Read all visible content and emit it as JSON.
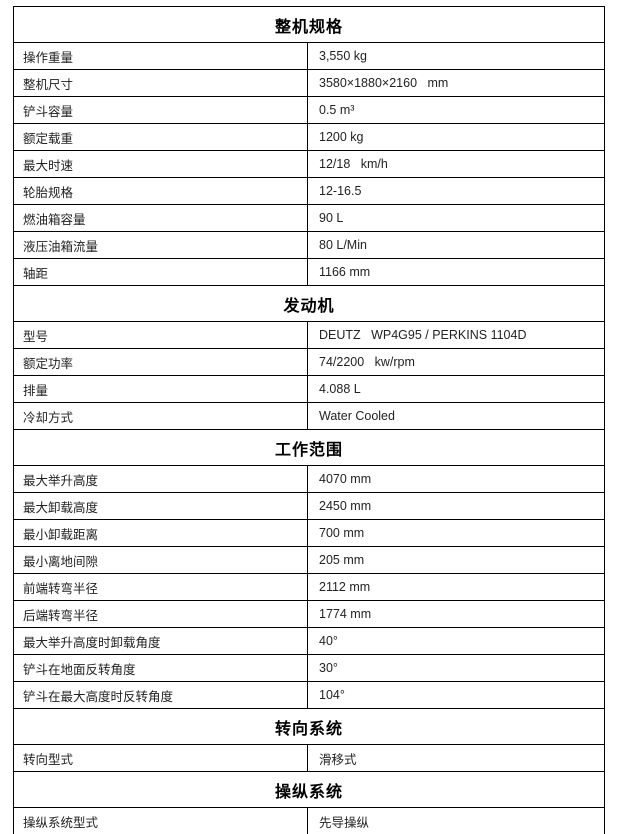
{
  "table": {
    "border_color": "#000000",
    "header_text_color": "#000000",
    "body_text_color": "#222222",
    "sections": [
      {
        "title": "整机规格",
        "rows": [
          {
            "label": "操作重量",
            "value": "3,550 kg"
          },
          {
            "label": "整机尺寸",
            "value": "3580×1880×2160   mm"
          },
          {
            "label": "铲斗容量",
            "value": "0.5 m³"
          },
          {
            "label": "额定载重",
            "value": "1200 kg"
          },
          {
            "label": "最大时速",
            "value": "12/18   km/h"
          },
          {
            "label": "轮胎规格",
            "value": "12-16.5"
          },
          {
            "label": "燃油箱容量",
            "value": "90 L"
          },
          {
            "label": "液压油箱流量",
            "value": "80 L/Min"
          },
          {
            "label": "轴距",
            "value": "1166 mm"
          }
        ]
      },
      {
        "title": "发动机",
        "rows": [
          {
            "label": "型号",
            "value": "DEUTZ   WP4G95 / PERKINS 1104D"
          },
          {
            "label": "额定功率",
            "value": "74/2200   kw/rpm"
          },
          {
            "label": "排量",
            "value": "4.088 L"
          },
          {
            "label": "冷却方式",
            "value": "Water Cooled"
          }
        ]
      },
      {
        "title": "工作范围",
        "rows": [
          {
            "label": "最大举升高度",
            "value": "4070 mm"
          },
          {
            "label": "最大卸载高度",
            "value": "2450 mm"
          },
          {
            "label": "最小卸载距离",
            "value": "700 mm"
          },
          {
            "label": "最小离地间隙",
            "value": "205 mm"
          },
          {
            "label": "前端转弯半径",
            "value": "2112 mm"
          },
          {
            "label": "后端转弯半径",
            "value": "1774 mm"
          },
          {
            "label": "最大举升高度时卸载角度",
            "value": "40°"
          },
          {
            "label": "铲斗在地面反转角度",
            "value": "30°"
          },
          {
            "label": "铲斗在最大高度时反转角度",
            "value": "104°"
          }
        ]
      },
      {
        "title": "转向系统",
        "rows": [
          {
            "label": "转向型式",
            "value": "滑移式"
          }
        ]
      },
      {
        "title": "操纵系统",
        "rows": [
          {
            "label": "操纵系统型式",
            "value": "先导操纵"
          }
        ]
      }
    ]
  }
}
